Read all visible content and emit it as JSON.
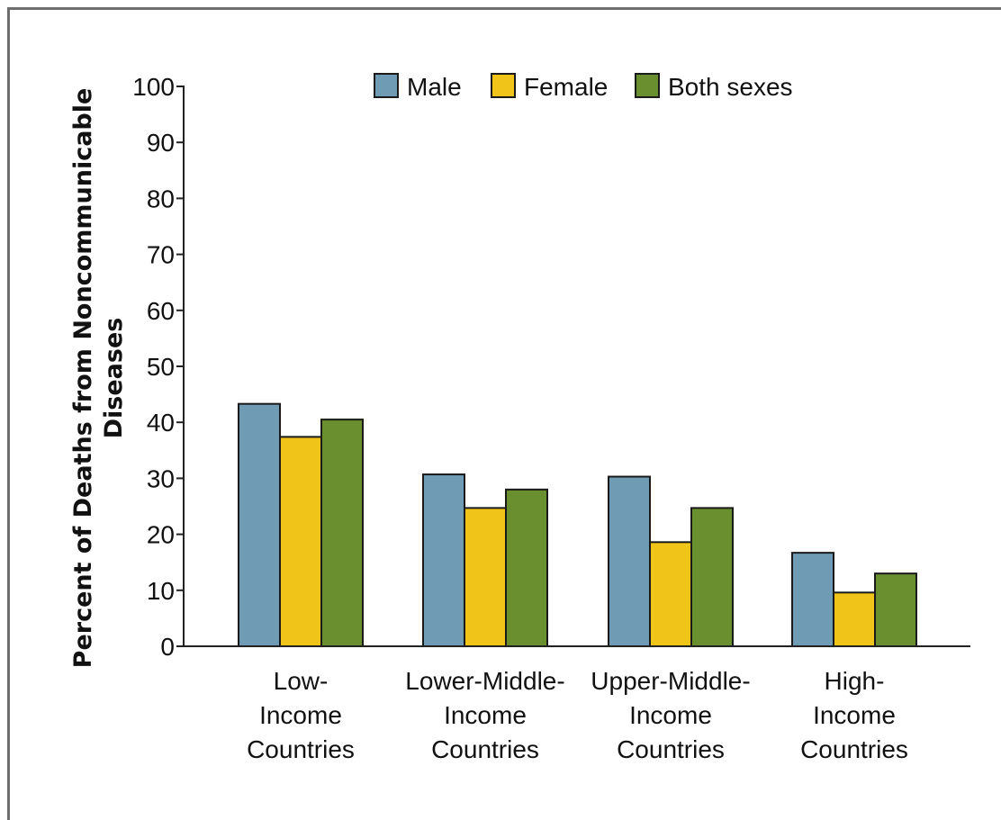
{
  "chart_data": {
    "type": "bar",
    "title": "",
    "xlabel": "",
    "ylabel_lines": [
      "Percent of Deaths from Noncommunicable",
      "Diseases"
    ],
    "ylim": [
      0,
      100
    ],
    "yticks": [
      0,
      10,
      20,
      30,
      40,
      50,
      60,
      70,
      80,
      90,
      100
    ],
    "categories": [
      [
        "Low-",
        "Income",
        "Countries"
      ],
      [
        "Lower-Middle-",
        "Income",
        "Countries"
      ],
      [
        "Upper-Middle-",
        "Income",
        "Countries"
      ],
      [
        "High-",
        "Income",
        "Countries"
      ]
    ],
    "series": [
      {
        "name": "Male",
        "color": "#6f9bb5",
        "values": [
          43.3,
          30.7,
          30.3,
          16.7
        ]
      },
      {
        "name": "Female",
        "color": "#f0c419",
        "values": [
          37.4,
          24.7,
          18.6,
          9.6
        ]
      },
      {
        "name": "Both sexes",
        "color": "#6a8f2e",
        "values": [
          40.5,
          28.0,
          24.7,
          13.0
        ]
      }
    ],
    "legend_position": "top",
    "grid": false
  }
}
